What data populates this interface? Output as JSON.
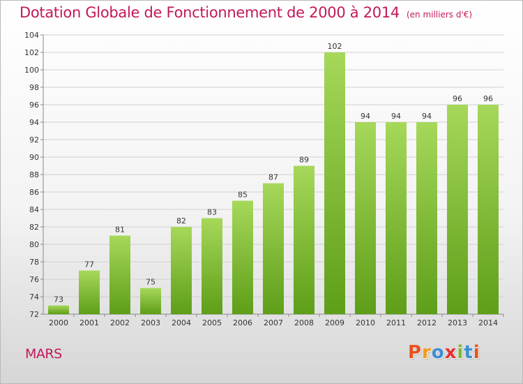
{
  "header": {
    "title": "Dotation Globale de Fonctionnement de 2000 à 2014",
    "unit": "(en milliers d'€)"
  },
  "footer": {
    "commune": "MARS",
    "logo_text": "Proxiti"
  },
  "colors": {
    "title": "#c2185b",
    "bar_light": "#a6d85a",
    "bar_dark": "#5e9e18",
    "grid": "#d0d0d0",
    "logo": [
      "#e8511f",
      "#f39b1b",
      "#3b8fd4",
      "#e6302f",
      "#7cb928",
      "#3b8fd4",
      "#e8511f"
    ]
  },
  "chart_data": {
    "type": "bar",
    "title": "Dotation Globale de Fonctionnement de 2000 à 2014",
    "subtitle": "(en milliers d'€)",
    "xlabel": "",
    "ylabel": "",
    "categories": [
      "2000",
      "2001",
      "2002",
      "2003",
      "2004",
      "2005",
      "2006",
      "2007",
      "2008",
      "2009",
      "2010",
      "2011",
      "2012",
      "2013",
      "2014"
    ],
    "values": [
      73,
      77,
      81,
      75,
      82,
      83,
      85,
      87,
      89,
      102,
      94,
      94,
      94,
      96,
      96
    ],
    "ylim": [
      72,
      104
    ],
    "yticks": [
      72,
      74,
      76,
      78,
      80,
      82,
      84,
      86,
      88,
      90,
      92,
      94,
      96,
      98,
      100,
      102,
      104
    ],
    "grid": true,
    "data_labels": true
  }
}
